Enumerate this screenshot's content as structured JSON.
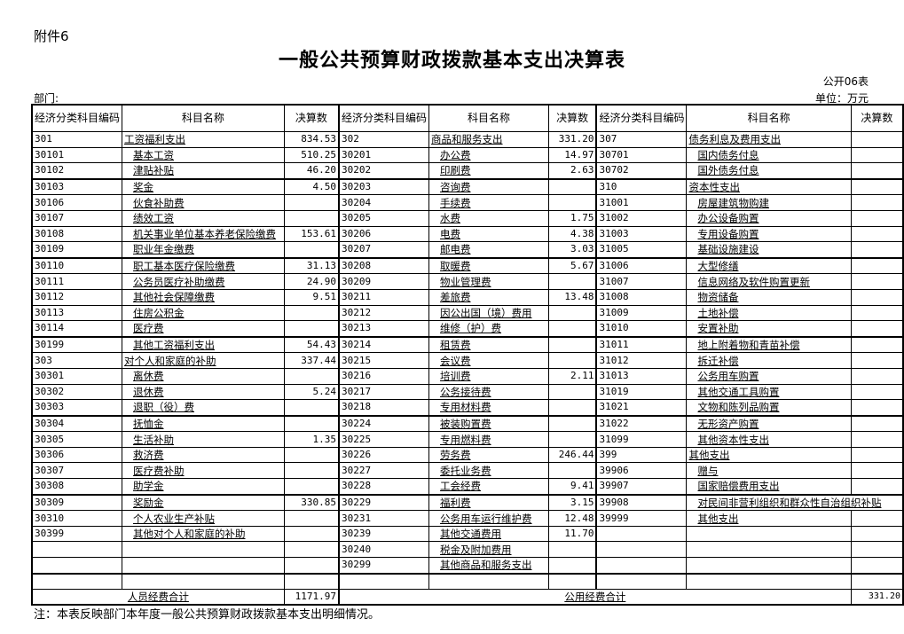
{
  "attachment": "附件6",
  "title": "一般公共预算财政拨款基本支出决算表",
  "table_no": "公开06表",
  "department_label": "部门:",
  "unit": "单位：万元",
  "headers": {
    "code": "经济分类科目编码",
    "code_right": "经济分类科目编码",
    "name": "科目名称",
    "amount": "决算数"
  },
  "columns": [
    {
      "rows": [
        {
          "code": "301",
          "name": "工资福利支出",
          "amount": "834.53",
          "sub": false
        },
        {
          "code": "30101",
          "name": "基本工资",
          "amount": "510.25",
          "sub": true
        },
        {
          "code": "30102",
          "name": "津贴补贴",
          "amount": "46.20",
          "sub": true
        },
        {
          "code": "30103",
          "name": "奖金",
          "amount": "4.50",
          "sub": true
        },
        {
          "code": "30106",
          "name": "伙食补助费",
          "amount": "",
          "sub": true
        },
        {
          "code": "30107",
          "name": "绩效工资",
          "amount": "",
          "sub": true
        },
        {
          "code": "30108",
          "name": "机关事业单位基本养老保险缴费",
          "amount": "153.61",
          "sub": true
        },
        {
          "code": "30109",
          "name": "职业年金缴费",
          "amount": "",
          "sub": true
        },
        {
          "code": "30110",
          "name": "职工基本医疗保险缴费",
          "amount": "31.13",
          "sub": true
        },
        {
          "code": "30111",
          "name": "公务员医疗补助缴费",
          "amount": "24.90",
          "sub": true
        },
        {
          "code": "30112",
          "name": "其他社会保障缴费",
          "amount": "9.51",
          "sub": true
        },
        {
          "code": "30113",
          "name": "住房公积金",
          "amount": "",
          "sub": true
        },
        {
          "code": "30114",
          "name": "医疗费",
          "amount": "",
          "sub": true
        },
        {
          "code": "30199",
          "name": "其他工资福利支出",
          "amount": "54.43",
          "sub": true
        },
        {
          "code": "303",
          "name": "对个人和家庭的补助",
          "amount": "337.44",
          "sub": false
        },
        {
          "code": "30301",
          "name": "离休费",
          "amount": "",
          "sub": true
        },
        {
          "code": "30302",
          "name": "退休费",
          "amount": "5.24",
          "sub": true
        },
        {
          "code": "30303",
          "name": "退职（役）费",
          "amount": "",
          "sub": true
        },
        {
          "code": "30304",
          "name": "抚恤金",
          "amount": "",
          "sub": true
        },
        {
          "code": "30305",
          "name": "生活补助",
          "amount": "1.35",
          "sub": true
        },
        {
          "code": "30306",
          "name": "救济费",
          "amount": "",
          "sub": true
        },
        {
          "code": "30307",
          "name": "医疗费补助",
          "amount": "",
          "sub": true
        },
        {
          "code": "30308",
          "name": "助学金",
          "amount": "",
          "sub": true
        },
        {
          "code": "30309",
          "name": "奖励金",
          "amount": "330.85",
          "sub": true
        },
        {
          "code": "30310",
          "name": "个人农业生产补贴",
          "amount": "",
          "sub": true
        },
        {
          "code": "30399",
          "name": "其他对个人和家庭的补助",
          "amount": "",
          "sub": true
        },
        {
          "code": "",
          "name": "",
          "amount": "",
          "sub": false
        },
        {
          "code": "",
          "name": "",
          "amount": "",
          "sub": false
        }
      ]
    },
    {
      "rows": [
        {
          "code": "302",
          "name": "商品和服务支出",
          "amount": "331.20",
          "sub": false
        },
        {
          "code": "30201",
          "name": "办公费",
          "amount": "14.97",
          "sub": true
        },
        {
          "code": "30202",
          "name": "印刷费",
          "amount": "2.63",
          "sub": true
        },
        {
          "code": "30203",
          "name": "咨询费",
          "amount": "",
          "sub": true
        },
        {
          "code": "30204",
          "name": "手续费",
          "amount": "",
          "sub": true
        },
        {
          "code": "30205",
          "name": "水费",
          "amount": "1.75",
          "sub": true
        },
        {
          "code": "30206",
          "name": "电费",
          "amount": "4.38",
          "sub": true
        },
        {
          "code": "30207",
          "name": "邮电费",
          "amount": "3.03",
          "sub": true
        },
        {
          "code": "30208",
          "name": "取暖费",
          "amount": "5.67",
          "sub": true
        },
        {
          "code": "30209",
          "name": "物业管理费",
          "amount": "",
          "sub": true
        },
        {
          "code": "30211",
          "name": "差旅费",
          "amount": "13.48",
          "sub": true
        },
        {
          "code": "30212",
          "name": "因公出国（境）费用",
          "amount": "",
          "sub": true
        },
        {
          "code": "30213",
          "name": "维修（护）费",
          "amount": "",
          "sub": true
        },
        {
          "code": "30214",
          "name": "租赁费",
          "amount": "",
          "sub": true
        },
        {
          "code": "30215",
          "name": "会议费",
          "amount": "",
          "sub": true
        },
        {
          "code": "30216",
          "name": "培训费",
          "amount": "2.11",
          "sub": true
        },
        {
          "code": "30217",
          "name": "公务接待费",
          "amount": "",
          "sub": true
        },
        {
          "code": "30218",
          "name": "专用材料费",
          "amount": "",
          "sub": true
        },
        {
          "code": "30224",
          "name": "被装购置费",
          "amount": "",
          "sub": true
        },
        {
          "code": "30225",
          "name": "专用燃料费",
          "amount": "",
          "sub": true
        },
        {
          "code": "30226",
          "name": "劳务费",
          "amount": "246.44",
          "sub": true
        },
        {
          "code": "30227",
          "name": "委托业务费",
          "amount": "",
          "sub": true
        },
        {
          "code": "30228",
          "name": "工会经费",
          "amount": "9.41",
          "sub": true
        },
        {
          "code": "30229",
          "name": "福利费",
          "amount": "3.15",
          "sub": true
        },
        {
          "code": "30231",
          "name": "公务用车运行维护费",
          "amount": "12.48",
          "sub": true
        },
        {
          "code": "30239",
          "name": "其他交通费用",
          "amount": "11.70",
          "sub": true
        },
        {
          "code": "30240",
          "name": "税金及附加费用",
          "amount": "",
          "sub": true
        },
        {
          "code": "30299",
          "name": "其他商品和服务支出",
          "amount": "",
          "sub": true
        }
      ]
    },
    {
      "rows": [
        {
          "code": "307",
          "name": "债务利息及费用支出",
          "amount": "",
          "sub": false
        },
        {
          "code": "30701",
          "name": "国内债务付息",
          "amount": "",
          "sub": true
        },
        {
          "code": "30702",
          "name": "国外债务付息",
          "amount": "",
          "sub": true
        },
        {
          "code": "310",
          "name": "资本性支出",
          "amount": "",
          "sub": false
        },
        {
          "code": "31001",
          "name": "房屋建筑物购建",
          "amount": "",
          "sub": true
        },
        {
          "code": "31002",
          "name": "办公设备购置",
          "amount": "",
          "sub": true
        },
        {
          "code": "31003",
          "name": "专用设备购置",
          "amount": "",
          "sub": true
        },
        {
          "code": "31005",
          "name": "基础设施建设",
          "amount": "",
          "sub": true
        },
        {
          "code": "31006",
          "name": "大型修缮",
          "amount": "",
          "sub": true
        },
        {
          "code": "31007",
          "name": "信息网络及软件购置更新",
          "amount": "",
          "sub": true
        },
        {
          "code": "31008",
          "name": "物资储备",
          "amount": "",
          "sub": true
        },
        {
          "code": "31009",
          "name": "土地补偿",
          "amount": "",
          "sub": true
        },
        {
          "code": "31010",
          "name": "安置补助",
          "amount": "",
          "sub": true
        },
        {
          "code": "31011",
          "name": "地上附着物和青苗补偿",
          "amount": "",
          "sub": true
        },
        {
          "code": "31012",
          "name": "拆迁补偿",
          "amount": "",
          "sub": true
        },
        {
          "code": "31013",
          "name": "公务用车购置",
          "amount": "",
          "sub": true
        },
        {
          "code": "31019",
          "name": "其他交通工具购置",
          "amount": "",
          "sub": true
        },
        {
          "code": "31021",
          "name": "文物和陈列品购置",
          "amount": "",
          "sub": true
        },
        {
          "code": "31022",
          "name": "无形资产购置",
          "amount": "",
          "sub": true
        },
        {
          "code": "31099",
          "name": "其他资本性支出",
          "amount": "",
          "sub": true
        },
        {
          "code": "399",
          "name": "其他支出",
          "amount": "",
          "sub": false
        },
        {
          "code": "39906",
          "name": "赠与",
          "amount": "",
          "sub": true
        },
        {
          "code": "39907",
          "name": "国家赔偿费用支出",
          "amount": "",
          "sub": true
        },
        {
          "code": "39908",
          "name": "对民间非营利组织和群众性自治组织补贴",
          "amount": "",
          "sub": true,
          "span": true
        },
        {
          "code": "39999",
          "name": "其他支出",
          "amount": "",
          "sub": true
        },
        {
          "code": "",
          "name": "",
          "amount": "",
          "sub": false
        },
        {
          "code": "",
          "name": "",
          "amount": "",
          "sub": false
        },
        {
          "code": "",
          "name": "",
          "amount": "",
          "sub": false
        }
      ]
    }
  ],
  "totals": {
    "personnel_label": "人员经费合计",
    "personnel_amount": "1171.97",
    "public_label": "公用经费合计",
    "public_amount": "331.20"
  },
  "note": "注：本表反映部门本年度一般公共预算财政拨款基本支出明细情况。"
}
